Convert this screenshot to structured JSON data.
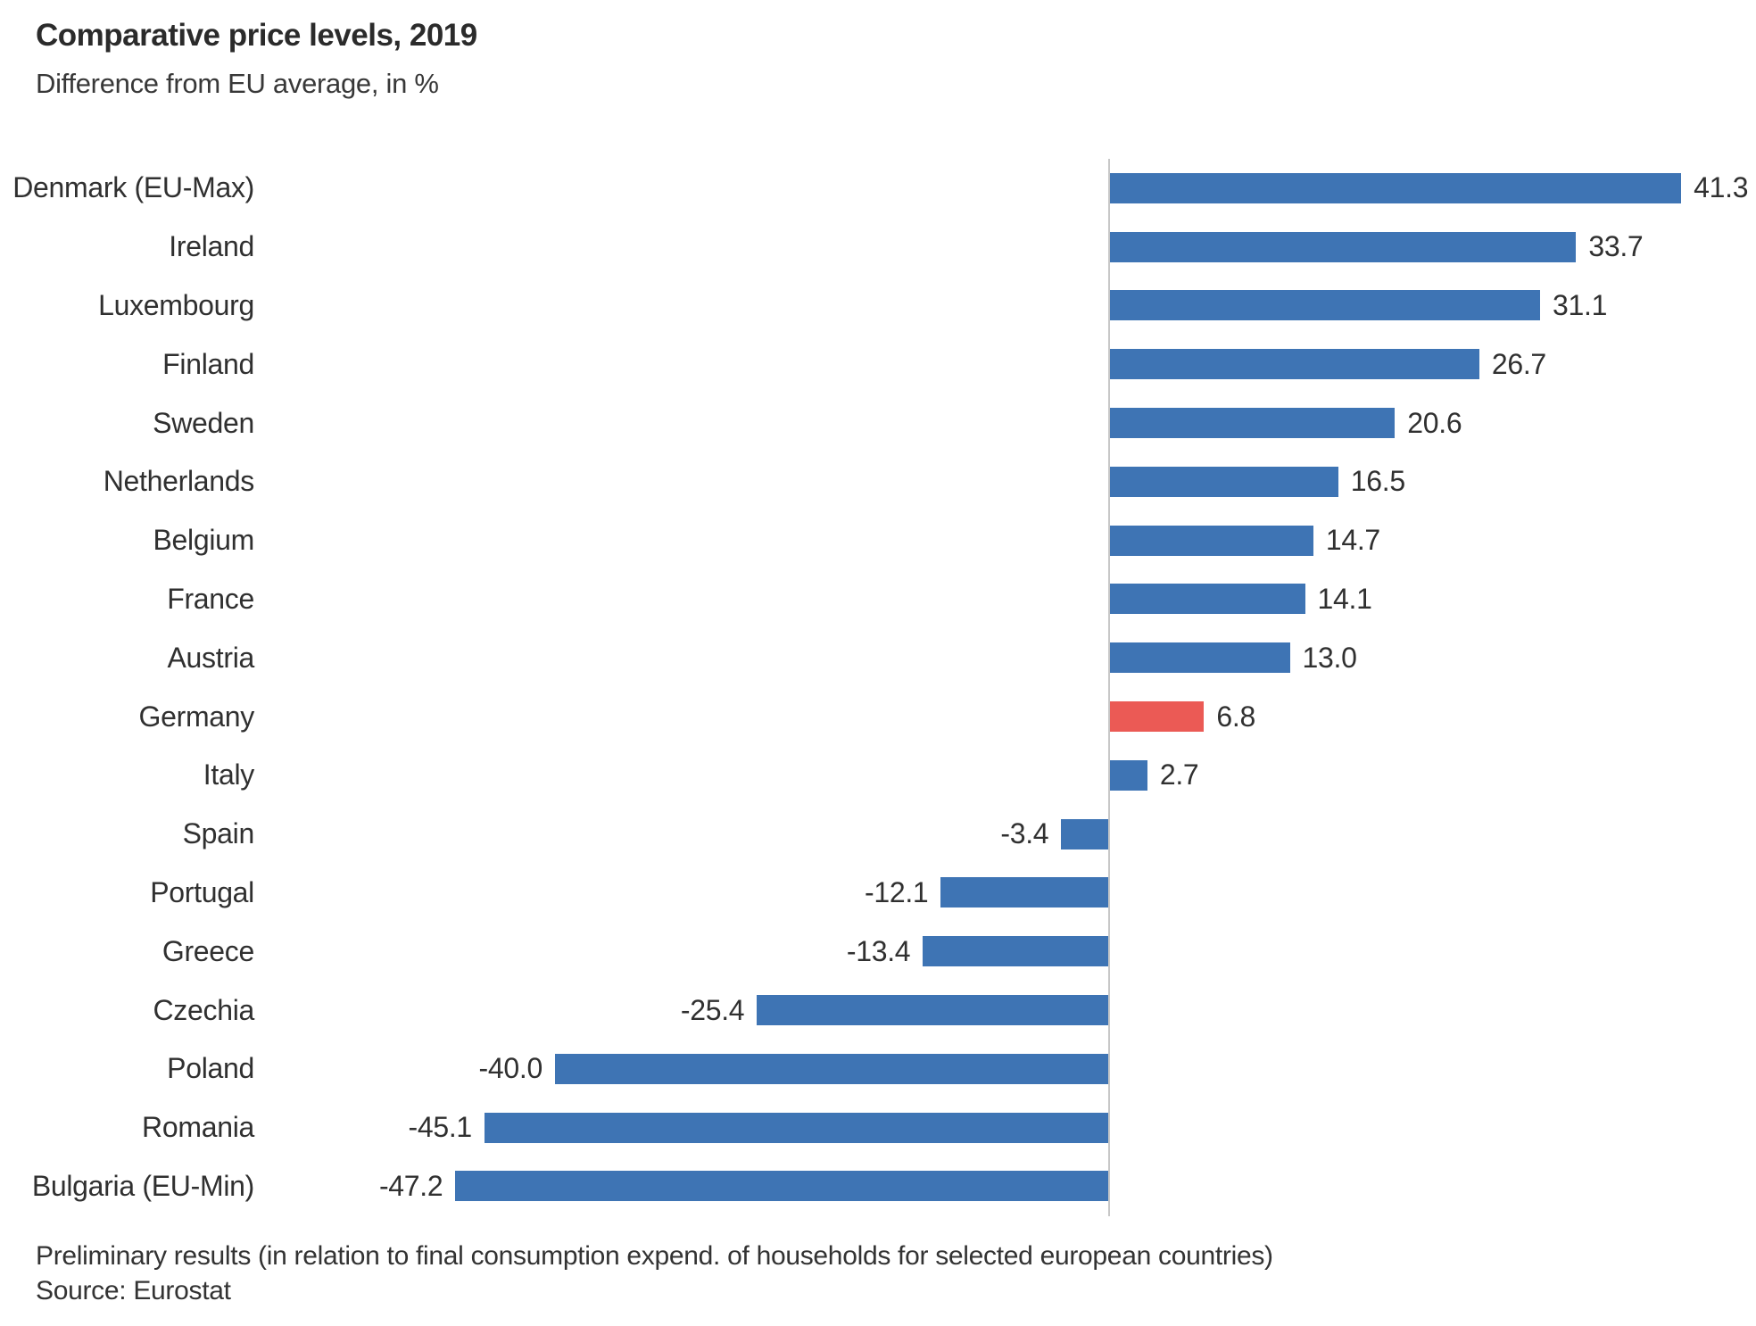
{
  "chart_data": {
    "type": "bar",
    "orientation": "horizontal",
    "title": "Comparative price levels, 2019",
    "subtitle": "Difference from EU average, in %",
    "categories": [
      "Denmark (EU-Max)",
      "Ireland",
      "Luxembourg",
      "Finland",
      "Sweden",
      "Netherlands",
      "Belgium",
      "France",
      "Austria",
      "Germany",
      "Italy",
      "Spain",
      "Portugal",
      "Greece",
      "Czechia",
      "Poland",
      "Romania",
      "Bulgaria (EU-Min)"
    ],
    "values": [
      41.3,
      33.7,
      31.1,
      26.7,
      20.6,
      16.5,
      14.7,
      14.1,
      13.0,
      6.8,
      2.7,
      -3.4,
      -12.1,
      -13.4,
      -25.4,
      -40.0,
      -45.1,
      -47.2
    ],
    "value_decimals": 1,
    "highlight_index": 9,
    "bar_color": "#3E74B4",
    "highlight_color": "#EB5A55",
    "zero_line_color": "#C7C7C7",
    "label_color": "#303030",
    "xlim": [
      -47.2,
      41.3
    ],
    "grid": "none",
    "legend": "none",
    "value_labels": "outside-end"
  },
  "footer": {
    "note": "Preliminary results (in relation to final consumption expend. of households for selected european countries)",
    "source": "Source: Eurostat"
  }
}
